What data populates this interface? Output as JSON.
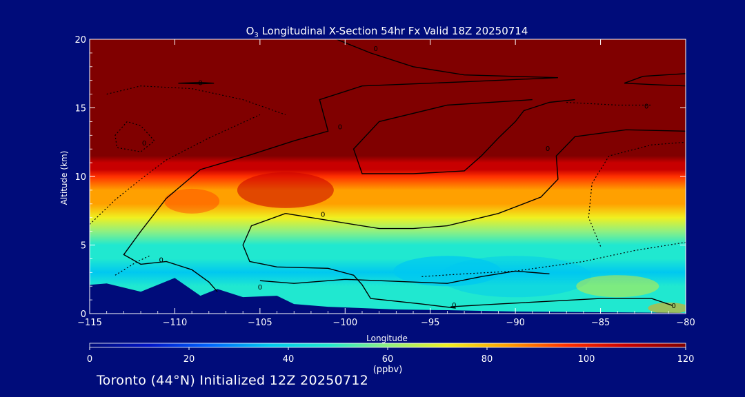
{
  "chart_data": {
    "type": "heatmap",
    "title_species": "O",
    "title_sub": "3",
    "title_rest": " Longitudinal X-Section 54hr  Fx Valid 18Z 20250714",
    "xlabel": "Longitude",
    "ylabel": "Altitude (km)",
    "xlim": [
      -115,
      -80
    ],
    "ylim": [
      0,
      20
    ],
    "xticks": [
      -115,
      -110,
      -105,
      -100,
      -95,
      -90,
      -85,
      -80
    ],
    "xtick_labels": [
      "−115",
      "−110",
      "−105",
      "−100",
      "−95",
      "−90",
      "−85",
      "−80"
    ],
    "yticks": [
      0,
      5,
      10,
      15,
      20
    ],
    "colorbar": {
      "label": "(ppbv)",
      "range": [
        0,
        120
      ],
      "ticks": [
        0,
        20,
        40,
        60,
        80,
        100,
        120
      ],
      "stops": [
        "#000c7a",
        "#0014c8",
        "#0064ff",
        "#00c8f0",
        "#20e8d0",
        "#90f080",
        "#f0f020",
        "#ffa000",
        "#ff3000",
        "#c80000",
        "#800000"
      ]
    },
    "ozone_profile": {
      "altitude_km": [
        0,
        2,
        3,
        4,
        5,
        6,
        7,
        8,
        9,
        10,
        10.5,
        11,
        11.5,
        12,
        20
      ],
      "ppbv": [
        48,
        44,
        40,
        42,
        48,
        62,
        72,
        80,
        88,
        96,
        102,
        108,
        114,
        125,
        130
      ]
    },
    "terrain": {
      "lon": [
        -115,
        -114,
        -112,
        -110,
        -108.5,
        -107.5,
        -106,
        -104,
        -103,
        -101,
        -97,
        -94,
        -90,
        -85,
        -80
      ],
      "top_km": [
        2.1,
        2.2,
        1.6,
        2.6,
        1.3,
        1.8,
        1.2,
        1.3,
        0.7,
        0.5,
        0.3,
        0.25,
        0.15,
        0.1,
        0.05
      ]
    },
    "contour_label": "0"
  },
  "footer": {
    "caption": "Toronto (44°N) Initialized 12Z 20250712"
  }
}
